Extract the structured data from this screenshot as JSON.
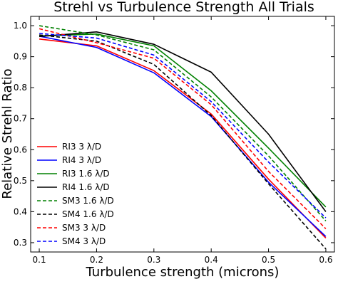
{
  "chart_data": {
    "type": "line",
    "title": "Strehl vs Turbulence Strength All Trials",
    "xlabel": "Turbulence strength (microns)",
    "ylabel": "Relative Strehl Ratio",
    "xlim": [
      0.085,
      0.615
    ],
    "ylim": [
      0.27,
      1.03
    ],
    "xticks": [
      0.1,
      0.2,
      0.3,
      0.4,
      0.5,
      0.6
    ],
    "xtick_labels": [
      "0.1",
      "0.2",
      "0.3",
      "0.4",
      "0.5",
      "0.6"
    ],
    "yticks": [
      0.3,
      0.4,
      0.5,
      0.6,
      0.7,
      0.8,
      0.9,
      1.0
    ],
    "ytick_labels": [
      "0.3",
      "0.4",
      "0.5",
      "0.6",
      "0.7",
      "0.8",
      "0.9",
      "1.0"
    ],
    "grid": false,
    "legend_position": "lower-left",
    "x": [
      0.1,
      0.2,
      0.3,
      0.4,
      0.5,
      0.6
    ],
    "series": [
      {
        "name": "RI3 3 λ/D",
        "color": "#ff0000",
        "dash": "solid",
        "values": [
          0.957,
          0.935,
          0.855,
          0.715,
          0.505,
          0.315
        ]
      },
      {
        "name": "RI4 3 λ/D",
        "color": "#0000ff",
        "dash": "solid",
        "values": [
          0.966,
          0.93,
          0.848,
          0.707,
          0.495,
          0.32
        ]
      },
      {
        "name": "RI3 1.6 λ/D",
        "color": "#008000",
        "dash": "solid",
        "values": [
          0.967,
          0.973,
          0.935,
          0.79,
          0.605,
          0.415
        ]
      },
      {
        "name": "RI4 1.6 λ/D",
        "color": "#000000",
        "dash": "solid",
        "values": [
          0.965,
          0.98,
          0.94,
          0.85,
          0.65,
          0.4
        ]
      },
      {
        "name": "SM3 1.6 λ/D",
        "color": "#008000",
        "dash": "dashed",
        "values": [
          1.0,
          0.97,
          0.922,
          0.77,
          0.58,
          0.37
        ]
      },
      {
        "name": "SM4 1.6 λ/D",
        "color": "#000000",
        "dash": "dashed",
        "values": [
          0.97,
          0.95,
          0.875,
          0.71,
          0.49,
          0.28
        ]
      },
      {
        "name": "SM3 3 λ/D",
        "color": "#ff0000",
        "dash": "dashed",
        "values": [
          0.99,
          0.945,
          0.895,
          0.745,
          0.53,
          0.345
        ]
      },
      {
        "name": "SM4 3 λ/D",
        "color": "#0000ff",
        "dash": "dashed",
        "values": [
          0.975,
          0.96,
          0.905,
          0.755,
          0.56,
          0.38
        ]
      }
    ]
  }
}
